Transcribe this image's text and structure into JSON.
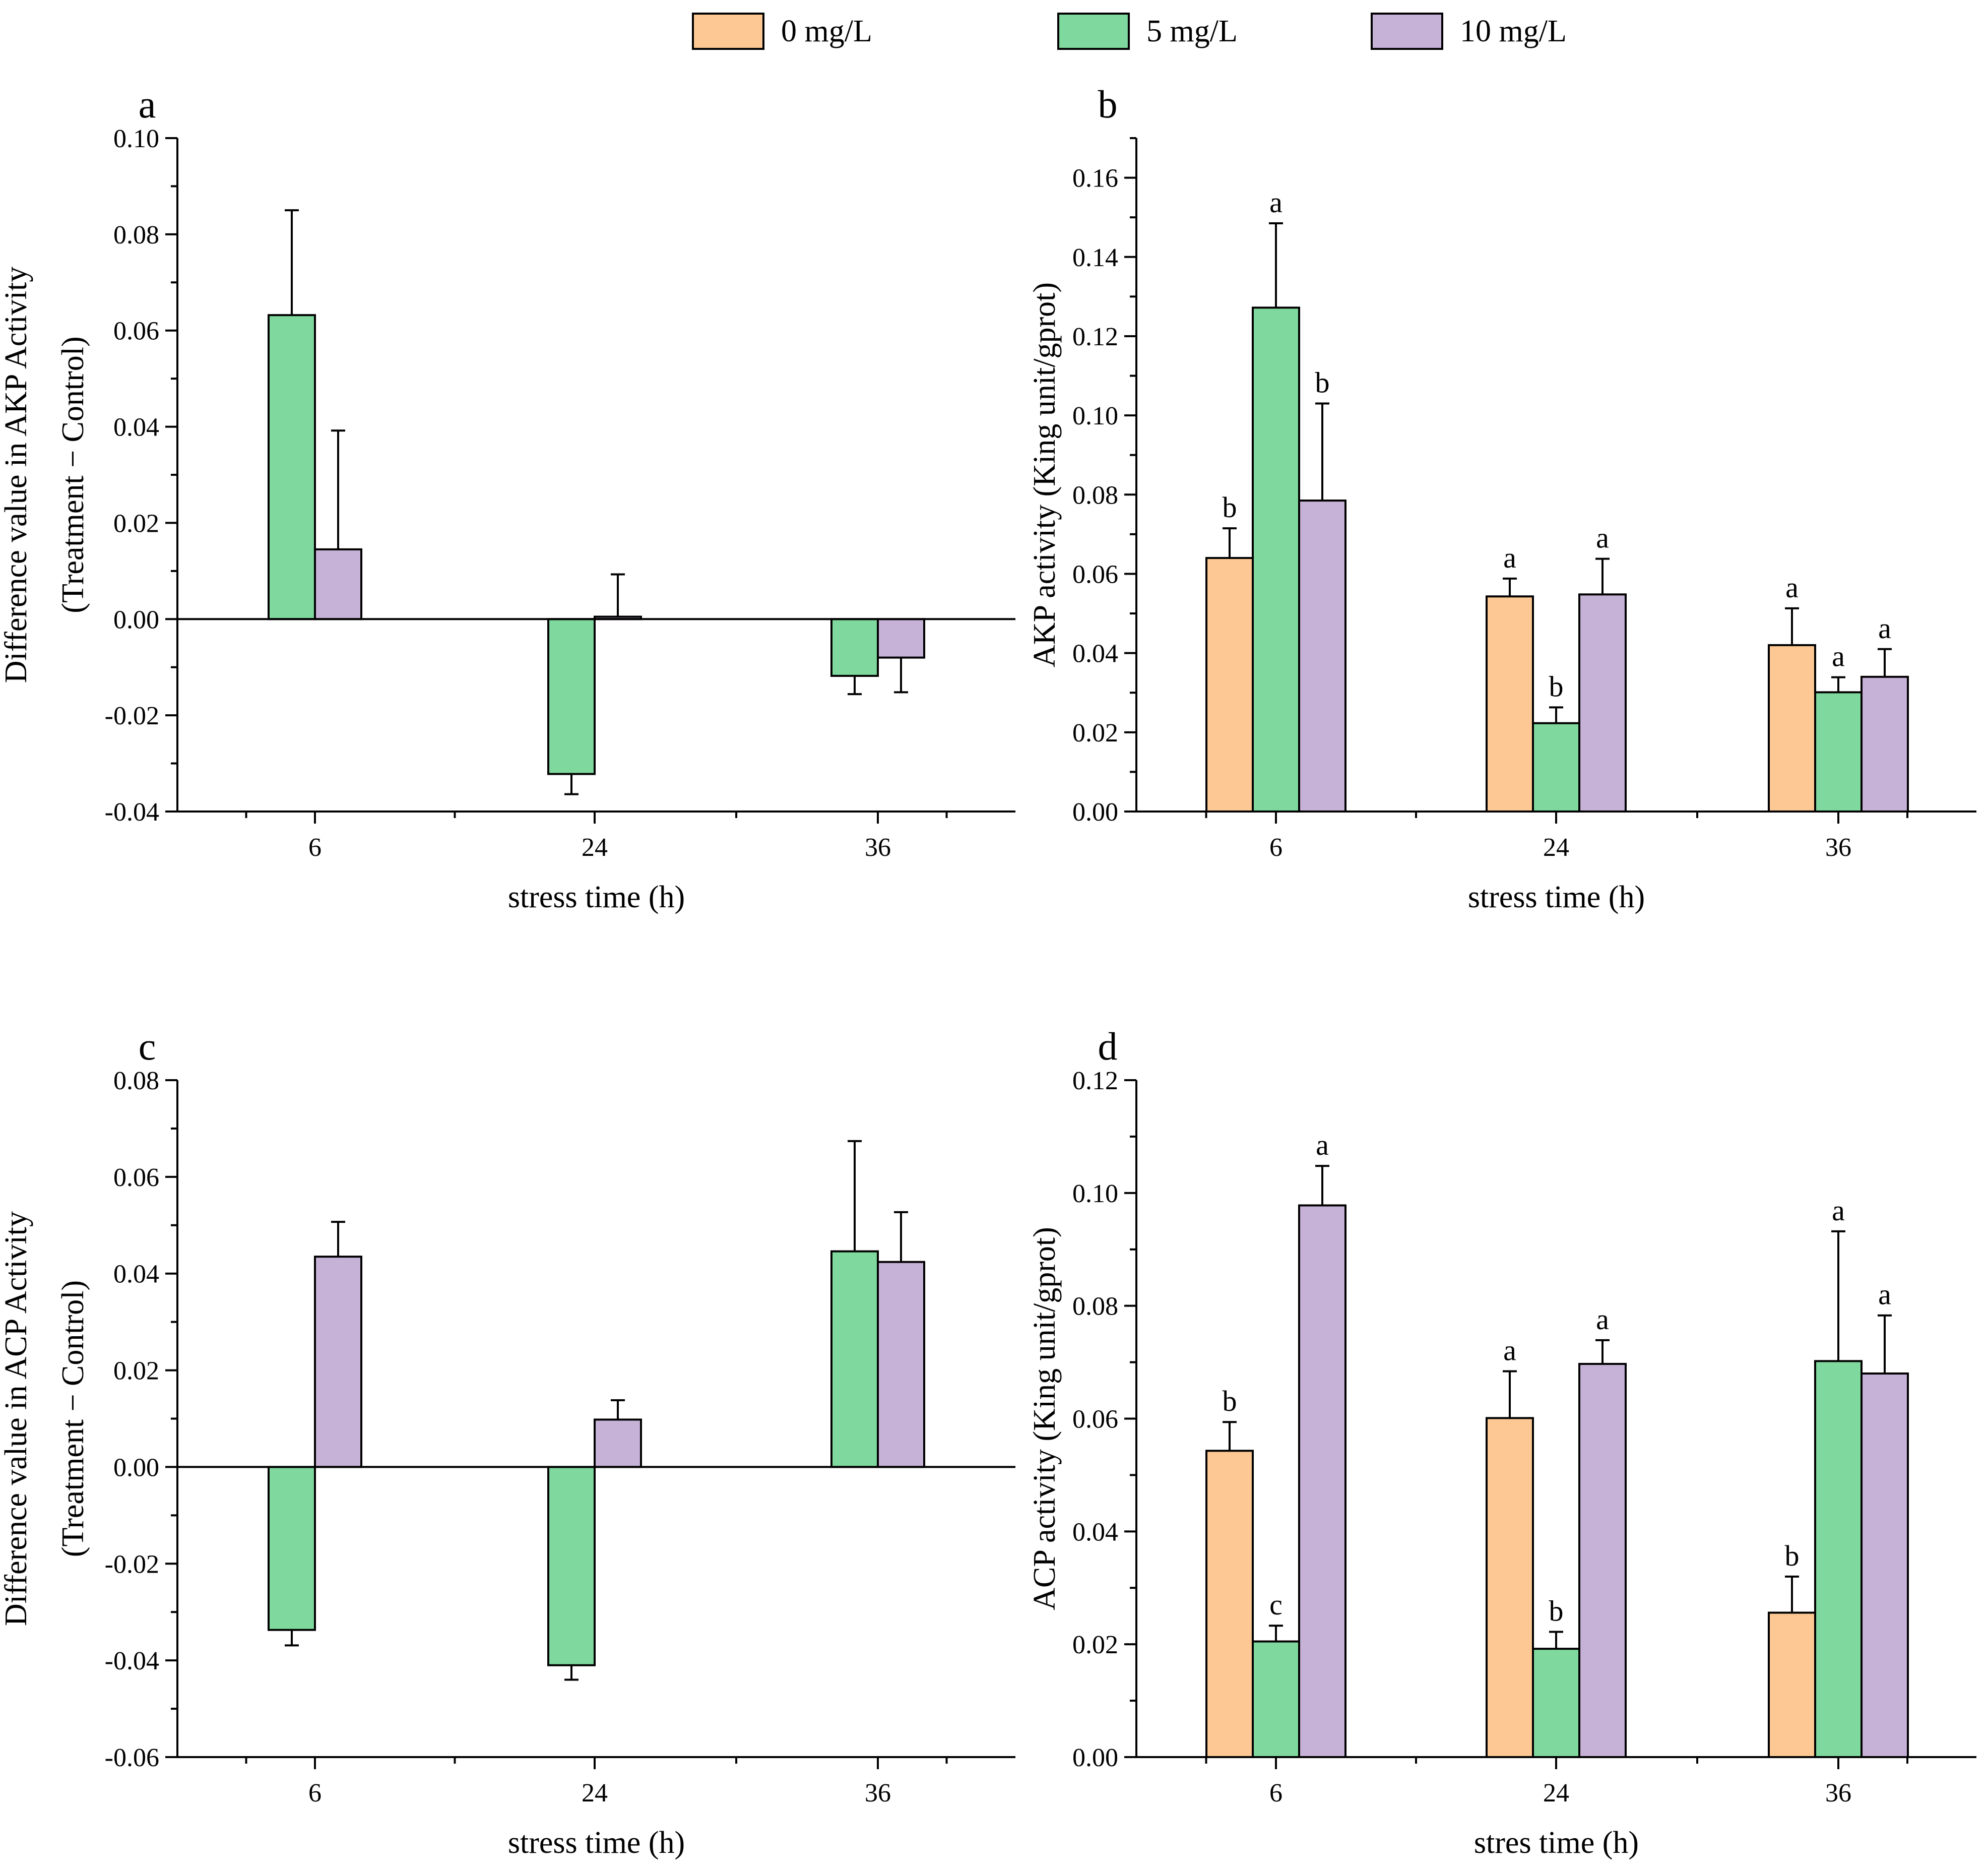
{
  "legend": [
    {
      "label": "0 mg/L",
      "color": "#FDC893"
    },
    {
      "label": "5 mg/L",
      "color": "#7FD99E"
    },
    {
      "label": "10 mg/L",
      "color": "#C6B1D7"
    }
  ],
  "chart_data": [
    {
      "id": "a",
      "panel_label": "a",
      "type": "bar",
      "categories": [
        "6",
        "24",
        "36"
      ],
      "xlabel": "stress time (h)",
      "ylabel": [
        "Difference value in AKP Activity",
        "(Treatment − Control)"
      ],
      "ylim": [
        -0.04,
        0.1
      ],
      "yticks": [
        "-0.04",
        "-0.02",
        "0.00",
        "0.02",
        "0.04",
        "0.06",
        "0.08",
        "0.10"
      ],
      "series": [
        {
          "name": "5 mg/L",
          "colorIndex": 1,
          "values": [
            0.0632,
            -0.0322,
            -0.0118
          ],
          "errors": [
            0.0218,
            0.0042,
            0.0038
          ]
        },
        {
          "name": "10 mg/L",
          "colorIndex": 2,
          "values": [
            0.0145,
            0.0005,
            -0.008
          ],
          "errors": [
            0.0247,
            0.0088,
            0.0072
          ]
        }
      ]
    },
    {
      "id": "b",
      "panel_label": "b",
      "type": "bar",
      "categories": [
        "6",
        "24",
        "36"
      ],
      "xlabel": "stress time (h)",
      "ylabel": [
        "AKP activity (King unit/gprot)"
      ],
      "ylim": [
        0,
        0.17
      ],
      "yticks": [
        "0.00",
        "0.02",
        "0.04",
        "0.06",
        "0.08",
        "0.10",
        "0.12",
        "0.14",
        "0.16"
      ],
      "series": [
        {
          "name": "0 mg/L",
          "colorIndex": 0,
          "values": [
            0.064,
            0.0543,
            0.042
          ],
          "errors": [
            0.0075,
            0.0045,
            0.0093
          ],
          "letters": [
            "b",
            "a",
            "a"
          ]
        },
        {
          "name": "5 mg/L",
          "colorIndex": 1,
          "values": [
            0.1272,
            0.0223,
            0.0301
          ],
          "errors": [
            0.0213,
            0.004,
            0.0038
          ],
          "letters": [
            "a",
            "b",
            "a"
          ]
        },
        {
          "name": "10 mg/L",
          "colorIndex": 2,
          "values": [
            0.0785,
            0.0548,
            0.034
          ],
          "errors": [
            0.0245,
            0.009,
            0.007
          ],
          "letters": [
            "b",
            "a",
            "a"
          ]
        }
      ]
    },
    {
      "id": "c",
      "panel_label": "c",
      "type": "bar",
      "categories": [
        "6",
        "24",
        "36"
      ],
      "xlabel": "stress time (h)",
      "ylabel": [
        "Difference value in ACP Activity",
        "(Treatment − Control)"
      ],
      "ylim": [
        -0.06,
        0.08
      ],
      "yticks": [
        "-0.06",
        "-0.04",
        "-0.02",
        "0.00",
        "0.02",
        "0.04",
        "0.06",
        "0.08"
      ],
      "series": [
        {
          "name": "5 mg/L",
          "colorIndex": 1,
          "values": [
            -0.0337,
            -0.041,
            0.0446
          ],
          "errors": [
            0.0032,
            0.003,
            0.0228
          ]
        },
        {
          "name": "10 mg/L",
          "colorIndex": 2,
          "values": [
            0.0435,
            0.0098,
            0.0424
          ],
          "errors": [
            0.0072,
            0.004,
            0.0103
          ]
        }
      ]
    },
    {
      "id": "d",
      "panel_label": "d",
      "type": "bar",
      "categories": [
        "6",
        "24",
        "36"
      ],
      "xlabel": "stres time (h)",
      "ylabel": [
        "ACP activity (King unit/gprot)"
      ],
      "ylim": [
        0,
        0.12
      ],
      "yticks": [
        "0.00",
        "0.02",
        "0.04",
        "0.06",
        "0.08",
        "0.10",
        "0.12"
      ],
      "series": [
        {
          "name": "0 mg/L",
          "colorIndex": 0,
          "values": [
            0.0543,
            0.0601,
            0.0256
          ],
          "errors": [
            0.0051,
            0.0083,
            0.0064
          ],
          "letters": [
            "b",
            "a",
            "b"
          ]
        },
        {
          "name": "5 mg/L",
          "colorIndex": 1,
          "values": [
            0.0205,
            0.0192,
            0.0702
          ],
          "errors": [
            0.0028,
            0.003,
            0.023
          ],
          "letters": [
            "c",
            "b",
            "a"
          ]
        },
        {
          "name": "10 mg/L",
          "colorIndex": 2,
          "values": [
            0.0978,
            0.0697,
            0.068
          ],
          "errors": [
            0.007,
            0.0042,
            0.0103
          ],
          "letters": [
            "a",
            "a",
            "a"
          ]
        }
      ]
    }
  ]
}
